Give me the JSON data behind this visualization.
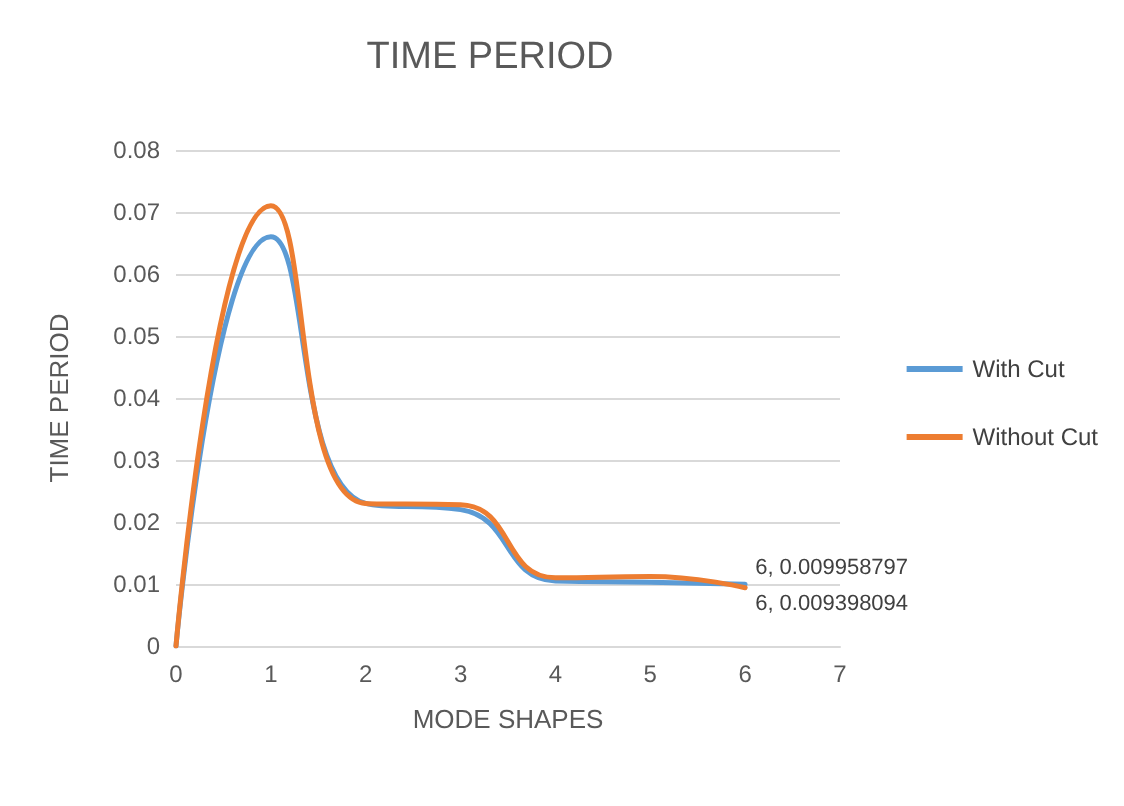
{
  "chart_data": {
    "type": "line",
    "title": "TIME PERIOD",
    "xlabel": "MODE SHAPES",
    "ylabel": "TIME PERIOD",
    "x": [
      0,
      1,
      2,
      3,
      4,
      5,
      6
    ],
    "series": [
      {
        "name": "With Cut",
        "color": "#5b9bd5",
        "values": [
          0,
          0.066,
          0.023,
          0.022,
          0.0105,
          0.0103,
          0.009958797
        ],
        "value_labels": [
          null,
          null,
          null,
          null,
          null,
          null,
          "6, 0.009958797"
        ]
      },
      {
        "name": "Without Cut",
        "color": "#ed7d31",
        "values": [
          0,
          0.071,
          0.023,
          0.0228,
          0.011,
          0.0112,
          0.009398094
        ],
        "value_labels": [
          null,
          null,
          null,
          null,
          null,
          null,
          "6, 0.009398094"
        ]
      }
    ],
    "xlim": [
      0,
      7
    ],
    "xticks": [
      0,
      1,
      2,
      3,
      4,
      5,
      6,
      7
    ],
    "ylim": [
      0,
      0.08
    ],
    "yticks": [
      0,
      0.01,
      0.02,
      0.03,
      0.04,
      0.05,
      0.06,
      0.07,
      0.08
    ],
    "grid": "y",
    "legend": "right",
    "marker": "none",
    "line_style": "solid"
  }
}
